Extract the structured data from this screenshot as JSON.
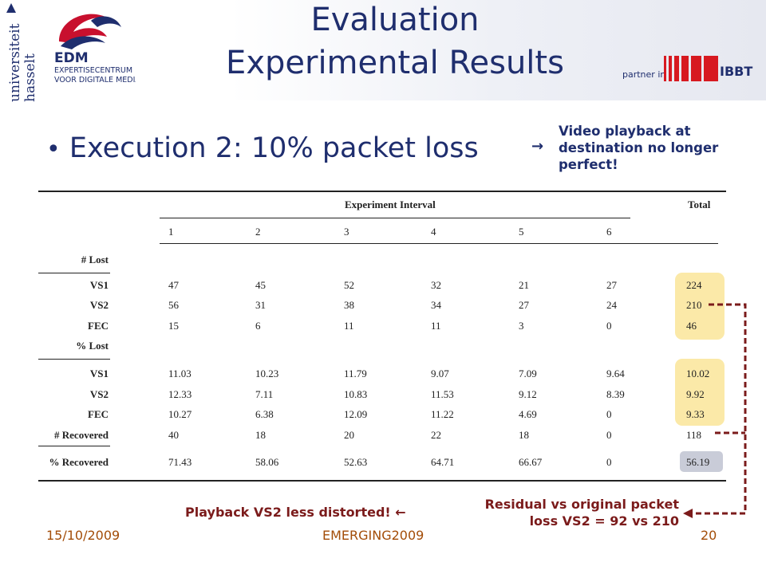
{
  "slide": {
    "title_line1": "Evaluation",
    "title_line2": "Experimental Results",
    "bullet": "Execution 2: 10% packet loss",
    "side_note": "Video playback at destination no longer perfect!",
    "side_arrow": "→",
    "logos": {
      "uhasselt_line1": "universiteit",
      "uhasselt_line2": "hasselt",
      "edm_abbrev": "EDM",
      "edm_line1": "EXPERTISECENTRUM",
      "edm_line2": "VOOR DIGITALE MEDIA",
      "partner_label": "partner in",
      "ibbt": "IBBT"
    }
  },
  "table": {
    "group_header": "Experiment Interval",
    "total_header": "Total",
    "intervals": [
      "1",
      "2",
      "3",
      "4",
      "5",
      "6"
    ],
    "sections": [
      {
        "label": "# Lost",
        "rows": [
          {
            "label": "VS1",
            "values": [
              "47",
              "45",
              "52",
              "32",
              "21",
              "27"
            ],
            "total": "224"
          },
          {
            "label": "VS2",
            "values": [
              "56",
              "31",
              "38",
              "34",
              "27",
              "24"
            ],
            "total": "210"
          },
          {
            "label": "FEC",
            "values": [
              "15",
              "6",
              "11",
              "11",
              "3",
              "0"
            ],
            "total": "46"
          }
        ]
      },
      {
        "label": "% Lost",
        "rows": [
          {
            "label": "VS1",
            "values": [
              "11.03",
              "10.23",
              "11.79",
              "9.07",
              "7.09",
              "9.64"
            ],
            "total": "10.02"
          },
          {
            "label": "VS2",
            "values": [
              "12.33",
              "7.11",
              "10.83",
              "11.53",
              "9.12",
              "8.39"
            ],
            "total": "9.92"
          },
          {
            "label": "FEC",
            "values": [
              "10.27",
              "6.38",
              "12.09",
              "11.22",
              "4.69",
              "0"
            ],
            "total": "9.33"
          }
        ]
      }
    ],
    "recovered": {
      "label": "# Recovered",
      "values": [
        "40",
        "18",
        "20",
        "22",
        "18",
        "0"
      ],
      "total": "118"
    },
    "pct_recovered": {
      "label": "% Recovered",
      "values": [
        "71.43",
        "58.06",
        "52.63",
        "64.71",
        "66.67",
        "0"
      ],
      "total": "56.19"
    }
  },
  "annotations": {
    "playback": "Playback VS2 less distorted!",
    "playback_arrow": "←",
    "residual_line1": "Residual vs original packet",
    "residual_line2": "loss VS2 = 92 vs 210"
  },
  "footer": {
    "date": "15/10/2009",
    "event": "EMERGING2009",
    "page": "20"
  },
  "colors": {
    "title": "#1f2e6e",
    "annotation": "#7b1b1b",
    "footer": "#a34d08",
    "highlight_yellow": "#fbe9a8",
    "highlight_grey": "#c9ccd8",
    "edm_red": "#c8102e",
    "edm_navy": "#1f2e6e"
  }
}
